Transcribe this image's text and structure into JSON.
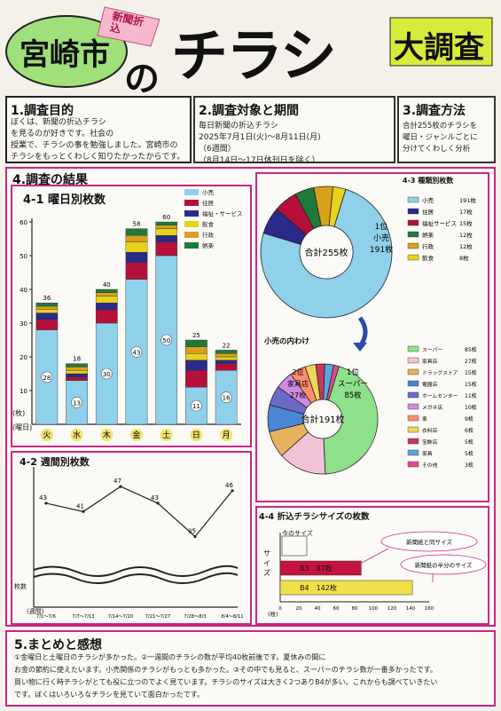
{
  "header": {
    "city": "宮崎市",
    "tag": "新聞折込",
    "no": "の",
    "chirashi": "チラシ",
    "daichousa": "大調査"
  },
  "intro": {
    "s1_title": "1.調査目的",
    "s1_text": [
      "ぼくは、新聞の折込チラシ",
      "を見るのが好きです。社会の",
      "授業で、チラシの事を勉強しました。宮崎市の",
      "チラシをもっとくわしく知りたかったからです。"
    ],
    "s2_title": "2.調査対象と期間",
    "s2_text": [
      "毎日新聞の折込チラシ",
      "2025年7月1日(火)〜8月11日(月)",
      "（6週間）",
      "（8月14日〜17日休刊日を除く）"
    ],
    "s3_title": "3.調査方法",
    "s3_text": [
      "合計255枚のチラシを",
      "曜日・ジャンルごとに",
      "分けてくわしく分析"
    ]
  },
  "results_title": "4.調査の結果",
  "chart_weekday": {
    "title": "4-1 曜日別枚数",
    "unit": "(枚)",
    "xunit": "(曜日)",
    "legend": [
      "小売",
      "住居",
      "福祉・サービス",
      "飲食",
      "行政",
      "娯楽"
    ],
    "legend_colors": [
      "#8fd0ea",
      "#b5103a",
      "#2a2a8a",
      "#e6d21a",
      "#d9a11a",
      "#1f7a3a"
    ]
  },
  "chart_data": [
    {
      "type": "bar",
      "title": "4-1 曜日別枚数",
      "categories": [
        "火",
        "水",
        "木",
        "金",
        "土",
        "日",
        "月"
      ],
      "ylim": [
        0,
        60
      ],
      "yticks": [
        10,
        20,
        30,
        40,
        50,
        60
      ],
      "totals": [
        36,
        18,
        40,
        58,
        60,
        25,
        22
      ],
      "series": [
        {
          "name": "小売",
          "values": [
            28,
            13,
            30,
            43,
            50,
            11,
            16
          ]
        },
        {
          "name": "住居",
          "values": [
            3,
            1,
            4,
            5,
            4,
            5,
            2
          ]
        },
        {
          "name": "福祉・サービス",
          "values": [
            2,
            1,
            2,
            3,
            2,
            3,
            1
          ]
        },
        {
          "name": "飲食",
          "values": [
            1,
            1,
            2,
            3,
            2,
            2,
            1
          ]
        },
        {
          "name": "行政",
          "values": [
            1,
            1,
            1,
            2,
            1,
            2,
            1
          ]
        },
        {
          "name": "娯楽",
          "values": [
            1,
            1,
            1,
            2,
            1,
            2,
            1
          ]
        }
      ]
    },
    {
      "type": "pie",
      "title": "4-3 種類別枚数",
      "center_label": "合計255枚",
      "top_label": [
        "1位",
        "小売",
        "191枚"
      ],
      "slices": [
        {
          "label": "小売",
          "value": 191,
          "color": "#8fd0ea"
        },
        {
          "label": "住居",
          "value": 17,
          "color": "#2a2a8a"
        },
        {
          "label": "福祉サービス",
          "value": 15,
          "color": "#b5103a"
        },
        {
          "label": "娯楽",
          "value": 12,
          "color": "#1f7a3a"
        },
        {
          "label": "行政",
          "value": 12,
          "color": "#d9a11a"
        },
        {
          "label": "飲食",
          "value": 8,
          "color": "#e6d21a"
        }
      ],
      "legend_text": [
        "191枚",
        "17枚",
        "15枚",
        "12枚",
        "12枚",
        "8枚"
      ]
    },
    {
      "type": "pie",
      "title": "小売の内わけ",
      "center_label": "合計191枚",
      "first_label": [
        "1位",
        "スーパー",
        "85枚"
      ],
      "second_label": [
        "2位",
        "家具店",
        "27枚"
      ],
      "slices": [
        {
          "label": "スーパー",
          "value": 85,
          "color": "#8fe08a"
        },
        {
          "label": "家具店",
          "value": 27,
          "color": "#f2c2d6"
        },
        {
          "label": "ドラッグストア",
          "value": 15,
          "color": "#e7b25c"
        },
        {
          "label": "電器店",
          "value": 15,
          "color": "#4a86d6"
        },
        {
          "label": "ホームセンター",
          "value": 11,
          "color": "#6c6ac8"
        },
        {
          "label": "メガネ店",
          "value": 10,
          "color": "#d18ae0"
        },
        {
          "label": "車",
          "value": 9,
          "color": "#ff8e6e"
        },
        {
          "label": "衣料店",
          "value": 6,
          "color": "#f0d55a"
        },
        {
          "label": "宝飾店",
          "value": 5,
          "color": "#c73a5d"
        },
        {
          "label": "家具",
          "value": 5,
          "color": "#5aa7e0"
        },
        {
          "label": "その他",
          "value": 3,
          "color": "#e24b90"
        }
      ],
      "legend_text": [
        "85枚",
        "27枚",
        "15枚",
        "15枚",
        "11枚",
        "10枚",
        "9枚",
        "6枚",
        "5枚",
        "5枚",
        "3枚"
      ]
    },
    {
      "type": "line",
      "title": "4-2 週間別枚数",
      "categories": [
        "7/1〜7/6",
        "7/7〜7/13",
        "7/14〜7/20",
        "7/21〜7/27",
        "7/28〜8/3",
        "8/4〜8/11"
      ],
      "values": [
        43,
        41,
        47,
        43,
        35,
        46
      ],
      "ylim": [
        30,
        50
      ],
      "xlabel": "(週間)",
      "ylabel": "枚数"
    },
    {
      "type": "bar",
      "orientation": "horizontal",
      "title": "4-4 折込チラシサイズの枚数",
      "categories": [
        "B3",
        "B4"
      ],
      "values": [
        87,
        142
      ],
      "xlim": [
        0,
        160
      ],
      "xticks": [
        0,
        20,
        40,
        60,
        80,
        100,
        120,
        140,
        160
      ],
      "ylabel": "サイズ",
      "xunit": "(枚)",
      "bar_labels": [
        "B3　87枚",
        "B4　142枚"
      ],
      "notes": [
        "新聞紙と同サイズ",
        "新聞紙の半分のサイズ"
      ],
      "hint": "今のサイズ"
    }
  ],
  "summary": {
    "title": "5.まとめと感想",
    "lines": [
      "①金曜日と土曜日のチラシが多かった。②一週間のチラシの数が平均40枚前後です。夏休みの間に",
      "お金の節約に使えたいます。小売関係のチラシがもっとも多かった。③その中でも見ると、スーパーのチラシ数が一番多かったです。",
      "買い物に行く時チラシがとても役に立つのでよく見ています。チラシのサイズは大きく2つありB4が多い。これからも調べていきたい",
      "です。ぼくはいろいろなチラシを見ていて面白かったです。"
    ]
  }
}
